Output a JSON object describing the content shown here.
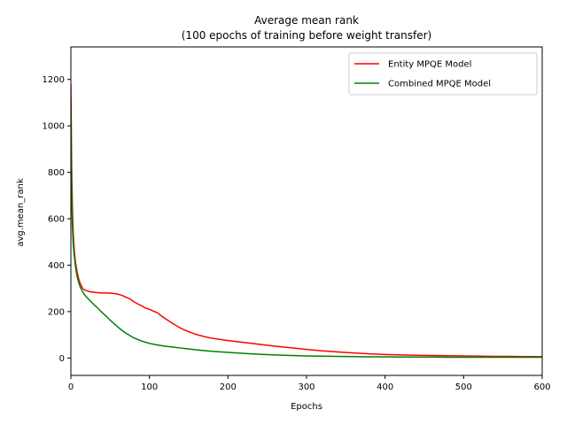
{
  "chart_data": {
    "type": "line",
    "title": "Average mean rank",
    "subtitle": "(100 epochs of training before weight transfer)",
    "xlabel": "Epochs",
    "ylabel": "avg.mean_rank",
    "xlim": [
      0,
      600
    ],
    "ylim": [
      -75,
      1340
    ],
    "xticks": [
      0,
      100,
      200,
      300,
      400,
      500,
      600
    ],
    "yticks": [
      0,
      200,
      400,
      600,
      800,
      1000,
      1200
    ],
    "grid": false,
    "legend_position": "top-right",
    "series": [
      {
        "name": "Entity MPQE Model",
        "color": "#ff0000",
        "x": [
          0,
          1,
          2,
          3,
          4,
          5,
          6,
          8,
          10,
          12,
          15,
          18,
          20,
          25,
          30,
          35,
          40,
          45,
          50,
          55,
          60,
          65,
          70,
          75,
          80,
          85,
          90,
          95,
          100,
          105,
          110,
          115,
          120,
          130,
          140,
          150,
          160,
          170,
          180,
          200,
          220,
          240,
          260,
          280,
          300,
          320,
          340,
          360,
          380,
          400,
          420,
          440,
          460,
          480,
          500,
          520,
          540,
          560,
          580,
          600
        ],
        "values": [
          1180,
          820,
          640,
          540,
          480,
          440,
          410,
          370,
          340,
          320,
          300,
          292,
          290,
          285,
          283,
          281,
          280,
          280,
          279,
          278,
          275,
          270,
          262,
          255,
          243,
          233,
          225,
          215,
          210,
          202,
          195,
          182,
          170,
          148,
          128,
          113,
          101,
          92,
          85,
          75,
          67,
          59,
          51,
          44,
          37,
          31,
          26,
          22,
          18,
          15,
          13,
          12,
          11,
          10,
          9,
          8,
          7,
          7,
          6,
          6
        ]
      },
      {
        "name": "Combined MPQE Model",
        "color": "#008000",
        "x": [
          0,
          1,
          2,
          3,
          4,
          5,
          6,
          8,
          10,
          12,
          15,
          18,
          20,
          25,
          30,
          35,
          40,
          45,
          50,
          55,
          60,
          65,
          70,
          75,
          80,
          85,
          90,
          95,
          100,
          110,
          120,
          130,
          140,
          150,
          160,
          170,
          180,
          200,
          220,
          240,
          260,
          280,
          300,
          320,
          340,
          360,
          380,
          400,
          420,
          440,
          460,
          480,
          500,
          520,
          540,
          560,
          580,
          600
        ],
        "values": [
          1100,
          700,
          560,
          490,
          450,
          420,
          390,
          350,
          325,
          305,
          285,
          270,
          262,
          245,
          228,
          212,
          195,
          180,
          163,
          148,
          133,
          119,
          107,
          97,
          87,
          80,
          73,
          68,
          63,
          56,
          51,
          47,
          43,
          39,
          35,
          32,
          29,
          24,
          20,
          16,
          13,
          11,
          9,
          8,
          7,
          6,
          5,
          5,
          4,
          4,
          4,
          3,
          3,
          3,
          3,
          3,
          3,
          3
        ]
      }
    ]
  }
}
